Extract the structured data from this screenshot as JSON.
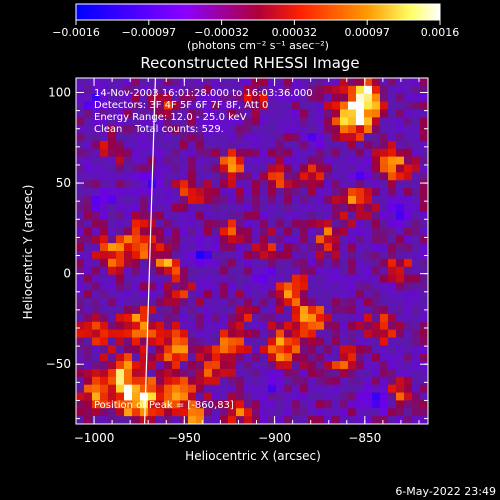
{
  "chart_data": {
    "type": "heatmap",
    "title": "Reconstructed RHESSI Image",
    "xlabel": "Heliocentric X (arcsec)",
    "ylabel": "Heliocentric Y (arcsec)",
    "xlim": [
      -1010,
      -815
    ],
    "ylim": [
      -83,
      108
    ],
    "x_ticks": [
      -1000,
      -950,
      -900,
      -850
    ],
    "x_tick_labels": [
      "−1000",
      "−950",
      "−900",
      "−850"
    ],
    "y_ticks": [
      100,
      50,
      0,
      -50
    ],
    "y_tick_labels": [
      "100",
      "50",
      "0",
      "−50"
    ],
    "colorbar": {
      "range": [
        -0.0016,
        0.0016
      ],
      "tick_labels": [
        "−0.0016",
        "−0.00097",
        "−0.00032",
        "0.00032",
        "0.00097",
        "0.0016"
      ],
      "unit_label": "(photons cm⁻² s⁻¹ asec⁻²)",
      "colors": [
        "#0000ff",
        "#8a00ff",
        "#ff2200",
        "#ff9900",
        "#ffffff"
      ]
    },
    "annotations": {
      "time_range": "14-Nov-2003 16:01:28.000 to 16:03:36.000",
      "detectors": "Detectors: 3F 4F 5F 6F 7F 8F, Att 0",
      "energy": "Energy Range: 12.0 - 25.0 keV",
      "method": "Clean    Total counts: 529.",
      "peak": "Position of Peak = [-860,83]"
    },
    "peak": {
      "x": -860,
      "y": 83
    },
    "limb_line": {
      "x": [
        -966,
        -972
      ],
      "y": [
        108,
        -83
      ]
    },
    "hot_spots": [
      {
        "x": -855,
        "y": 88,
        "r": 12,
        "v": 1.0
      },
      {
        "x": -848,
        "y": 100,
        "r": 7,
        "v": 0.9
      },
      {
        "x": -835,
        "y": 60,
        "r": 10,
        "v": 0.65
      },
      {
        "x": -855,
        "y": 40,
        "r": 9,
        "v": 0.6
      },
      {
        "x": -990,
        "y": 10,
        "r": 9,
        "v": 0.6
      },
      {
        "x": -975,
        "y": 18,
        "r": 10,
        "v": 0.7
      },
      {
        "x": -960,
        "y": 5,
        "r": 8,
        "v": 0.6
      },
      {
        "x": -925,
        "y": 60,
        "r": 10,
        "v": 0.55
      },
      {
        "x": -945,
        "y": 45,
        "r": 8,
        "v": 0.5
      },
      {
        "x": -900,
        "y": 50,
        "r": 8,
        "v": 0.45
      },
      {
        "x": -880,
        "y": 55,
        "r": 7,
        "v": 0.5
      },
      {
        "x": -990,
        "y": 70,
        "r": 7,
        "v": 0.5
      },
      {
        "x": -960,
        "y": 95,
        "r": 7,
        "v": 0.35
      },
      {
        "x": -910,
        "y": 95,
        "r": 7,
        "v": 0.45
      },
      {
        "x": -940,
        "y": 75,
        "r": 7,
        "v": 0.4
      },
      {
        "x": -870,
        "y": 20,
        "r": 8,
        "v": 0.55
      },
      {
        "x": -890,
        "y": -10,
        "r": 9,
        "v": 0.6
      },
      {
        "x": -880,
        "y": -25,
        "r": 9,
        "v": 0.65
      },
      {
        "x": -895,
        "y": -40,
        "r": 10,
        "v": 0.7
      },
      {
        "x": -860,
        "y": -50,
        "r": 8,
        "v": 0.55
      },
      {
        "x": -840,
        "y": -30,
        "r": 9,
        "v": 0.55
      },
      {
        "x": -830,
        "y": 5,
        "r": 7,
        "v": 0.45
      },
      {
        "x": -1000,
        "y": -30,
        "r": 9,
        "v": 0.6
      },
      {
        "x": -975,
        "y": -30,
        "r": 10,
        "v": 0.7
      },
      {
        "x": -955,
        "y": -40,
        "r": 10,
        "v": 0.65
      },
      {
        "x": -925,
        "y": -40,
        "r": 9,
        "v": 0.6
      },
      {
        "x": -935,
        "y": -55,
        "r": 8,
        "v": 0.55
      },
      {
        "x": -985,
        "y": -55,
        "r": 10,
        "v": 0.75
      },
      {
        "x": -975,
        "y": -70,
        "r": 12,
        "v": 0.9
      },
      {
        "x": -955,
        "y": -65,
        "r": 9,
        "v": 0.8
      },
      {
        "x": -1000,
        "y": -65,
        "r": 9,
        "v": 0.7
      },
      {
        "x": -945,
        "y": -78,
        "r": 8,
        "v": 0.6
      },
      {
        "x": -920,
        "y": -75,
        "r": 8,
        "v": 0.5
      },
      {
        "x": -905,
        "y": 15,
        "r": 7,
        "v": 0.4
      },
      {
        "x": -925,
        "y": 25,
        "r": 7,
        "v": 0.45
      },
      {
        "x": -950,
        "y": -10,
        "r": 7,
        "v": 0.4
      },
      {
        "x": -915,
        "y": -20,
        "r": 7,
        "v": 0.4
      },
      {
        "x": -830,
        "y": -65,
        "r": 7,
        "v": 0.45
      }
    ],
    "cold_spots": [
      {
        "x": -850,
        "y": 55,
        "r": 6,
        "v": -0.6
      },
      {
        "x": -995,
        "y": 40,
        "r": 6,
        "v": -0.55
      },
      {
        "x": -940,
        "y": 10,
        "r": 6,
        "v": -0.6
      },
      {
        "x": -900,
        "y": -60,
        "r": 6,
        "v": -0.55
      },
      {
        "x": -845,
        "y": -70,
        "r": 6,
        "v": -0.7
      },
      {
        "x": -875,
        "y": 75,
        "r": 6,
        "v": -0.5
      },
      {
        "x": -1000,
        "y": 95,
        "r": 6,
        "v": -0.5
      },
      {
        "x": -970,
        "y": 50,
        "r": 6,
        "v": -0.45
      },
      {
        "x": -905,
        "y": 0,
        "r": 6,
        "v": -0.5
      },
      {
        "x": -935,
        "y": 80,
        "r": 5,
        "v": -0.5
      },
      {
        "x": -830,
        "y": 35,
        "r": 6,
        "v": -0.55
      }
    ]
  },
  "footer": {
    "date": "6-May-2022 23:49"
  }
}
